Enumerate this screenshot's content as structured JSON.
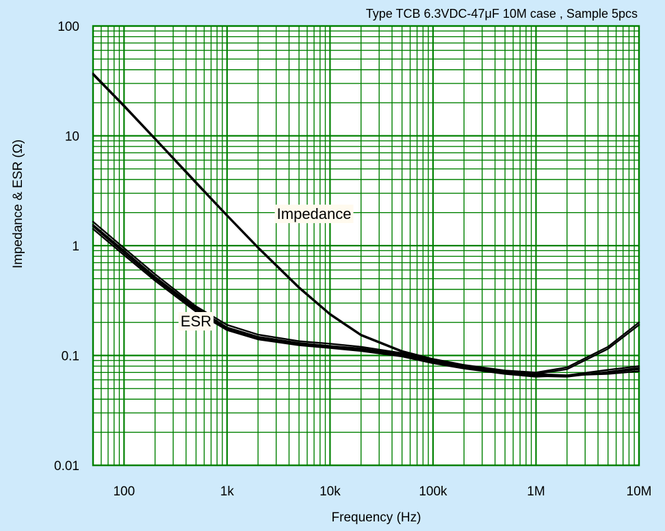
{
  "chart_data": {
    "type": "line",
    "title": "Type TCB 6.3VDC-47μF 10M case , Sample 5pcs",
    "xlabel": "Frequency (Hz)",
    "ylabel": "Impedance & ESR (Ω)",
    "x_scale": "log",
    "y_scale": "log",
    "xlim": [
      50,
      10000000
    ],
    "ylim": [
      0.01,
      100
    ],
    "grid": true,
    "x_ticks": [
      {
        "value": 100,
        "label": "100"
      },
      {
        "value": 1000,
        "label": "1k"
      },
      {
        "value": 10000,
        "label": "10k"
      },
      {
        "value": 100000,
        "label": "100k"
      },
      {
        "value": 1000000,
        "label": "1M"
      },
      {
        "value": 10000000,
        "label": "10M"
      }
    ],
    "y_ticks": [
      {
        "value": 0.01,
        "label": "0.01"
      },
      {
        "value": 0.1,
        "label": "0.1"
      },
      {
        "value": 1,
        "label": "1"
      },
      {
        "value": 10,
        "label": "10"
      },
      {
        "value": 100,
        "label": "100"
      }
    ],
    "annotations": [
      {
        "text": "Impedance",
        "x": 7000,
        "y": 1.9
      },
      {
        "text": "ESR",
        "x": 500,
        "y": 0.2
      }
    ],
    "series": [
      {
        "values": [
          [
            50,
            37
          ],
          [
            100,
            19
          ],
          [
            200,
            9.5
          ],
          [
            500,
            3.8
          ],
          [
            1000,
            1.9
          ],
          [
            2000,
            0.97
          ],
          [
            5000,
            0.42
          ],
          [
            10000,
            0.24
          ],
          [
            20000,
            0.155
          ],
          [
            50000,
            0.11
          ],
          [
            100000,
            0.093
          ],
          [
            200000,
            0.082
          ],
          [
            500000,
            0.073
          ],
          [
            1000000,
            0.07
          ],
          [
            2000000,
            0.078
          ],
          [
            5000000,
            0.12
          ],
          [
            10000000,
            0.2
          ]
        ]
      },
      {
        "values": [
          [
            50,
            36
          ],
          [
            100,
            18.5
          ],
          [
            200,
            9.3
          ],
          [
            500,
            3.7
          ],
          [
            1000,
            1.86
          ],
          [
            2000,
            0.95
          ],
          [
            5000,
            0.41
          ],
          [
            10000,
            0.235
          ],
          [
            20000,
            0.152
          ],
          [
            50000,
            0.108
          ],
          [
            100000,
            0.091
          ],
          [
            200000,
            0.08
          ],
          [
            500000,
            0.071
          ],
          [
            1000000,
            0.068
          ],
          [
            2000000,
            0.075
          ],
          [
            5000000,
            0.115
          ],
          [
            10000000,
            0.19
          ]
        ]
      },
      {
        "values": [
          [
            50,
            1.65
          ],
          [
            100,
            0.95
          ],
          [
            200,
            0.55
          ],
          [
            500,
            0.28
          ],
          [
            1000,
            0.19
          ],
          [
            2000,
            0.155
          ],
          [
            5000,
            0.135
          ],
          [
            10000,
            0.128
          ],
          [
            20000,
            0.12
          ],
          [
            50000,
            0.105
          ],
          [
            100000,
            0.09
          ],
          [
            200000,
            0.08
          ],
          [
            500000,
            0.072
          ],
          [
            1000000,
            0.068
          ],
          [
            2000000,
            0.066
          ],
          [
            5000000,
            0.068
          ],
          [
            10000000,
            0.072
          ]
        ]
      },
      {
        "values": [
          [
            50,
            1.55
          ],
          [
            100,
            0.9
          ],
          [
            200,
            0.52
          ],
          [
            500,
            0.27
          ],
          [
            1000,
            0.18
          ],
          [
            2000,
            0.148
          ],
          [
            5000,
            0.13
          ],
          [
            10000,
            0.122
          ],
          [
            20000,
            0.116
          ],
          [
            50000,
            0.102
          ],
          [
            100000,
            0.088
          ],
          [
            200000,
            0.078
          ],
          [
            500000,
            0.07
          ],
          [
            1000000,
            0.066
          ],
          [
            2000000,
            0.065
          ],
          [
            5000000,
            0.07
          ],
          [
            10000000,
            0.075
          ]
        ]
      },
      {
        "values": [
          [
            50,
            1.5
          ],
          [
            100,
            0.86
          ],
          [
            200,
            0.5
          ],
          [
            500,
            0.26
          ],
          [
            1000,
            0.175
          ],
          [
            2000,
            0.143
          ],
          [
            5000,
            0.127
          ],
          [
            10000,
            0.12
          ],
          [
            20000,
            0.113
          ],
          [
            50000,
            0.1
          ],
          [
            100000,
            0.086
          ],
          [
            200000,
            0.077
          ],
          [
            500000,
            0.069
          ],
          [
            1000000,
            0.065
          ],
          [
            2000000,
            0.064
          ],
          [
            5000000,
            0.071
          ],
          [
            10000000,
            0.077
          ]
        ]
      },
      {
        "values": [
          [
            50,
            1.42
          ],
          [
            100,
            0.82
          ],
          [
            200,
            0.48
          ],
          [
            500,
            0.25
          ],
          [
            1000,
            0.17
          ],
          [
            2000,
            0.14
          ],
          [
            5000,
            0.124
          ],
          [
            10000,
            0.117
          ],
          [
            20000,
            0.11
          ],
          [
            50000,
            0.098
          ],
          [
            100000,
            0.085
          ],
          [
            200000,
            0.076
          ],
          [
            500000,
            0.068
          ],
          [
            1000000,
            0.064
          ],
          [
            2000000,
            0.066
          ],
          [
            5000000,
            0.074
          ],
          [
            10000000,
            0.08
          ]
        ]
      }
    ]
  }
}
